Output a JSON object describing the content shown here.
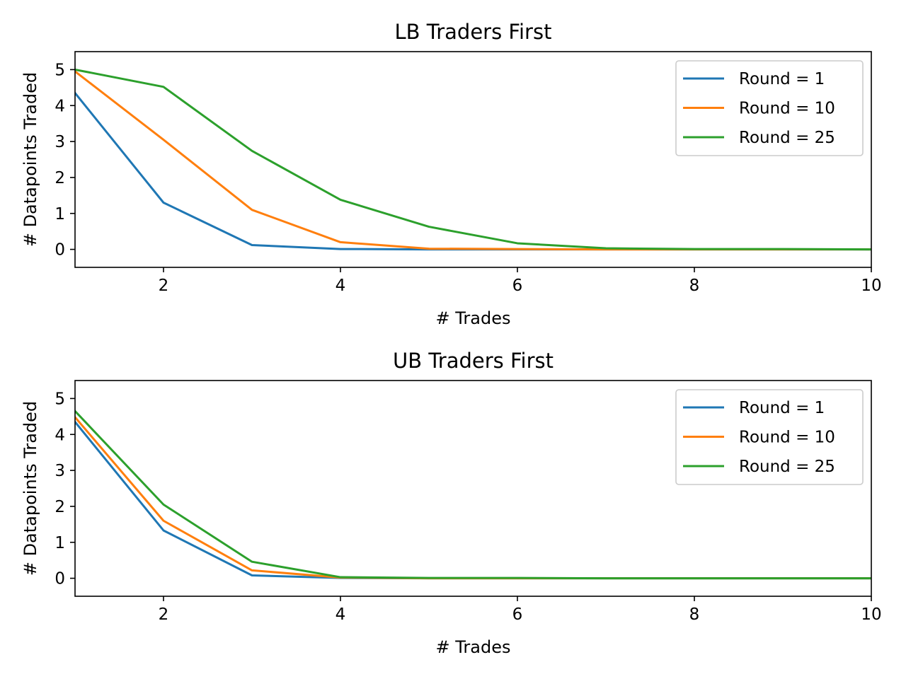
{
  "chart_data": [
    {
      "type": "line",
      "title": "LB Traders First",
      "xlabel": "# Trades",
      "ylabel": "# Datapoints Traded",
      "xlim": [
        1,
        10
      ],
      "ylim": [
        -0.5,
        5.5
      ],
      "xticks": [
        2,
        4,
        6,
        8,
        10
      ],
      "yticks": [
        0,
        1,
        2,
        3,
        4,
        5
      ],
      "grid": false,
      "legend": "top-right",
      "x": [
        1,
        2,
        3,
        4,
        5,
        6,
        7,
        8,
        9,
        10
      ],
      "series": [
        {
          "name": "Round = 1",
          "color": "#1f77b4",
          "values": [
            4.35,
            1.3,
            0.12,
            0.01,
            0.0,
            0.0,
            0.0,
            0.0,
            0.0,
            0.0
          ]
        },
        {
          "name": "Round = 10",
          "color": "#ff7f0e",
          "values": [
            4.95,
            3.05,
            1.1,
            0.2,
            0.02,
            0.01,
            0.0,
            0.0,
            0.0,
            0.0
          ]
        },
        {
          "name": "Round = 25",
          "color": "#2ca02c",
          "values": [
            5.0,
            4.52,
            2.74,
            1.38,
            0.63,
            0.17,
            0.03,
            0.01,
            0.01,
            0.0
          ]
        }
      ]
    },
    {
      "type": "line",
      "title": "UB Traders First",
      "xlabel": "# Trades",
      "ylabel": "# Datapoints Traded",
      "xlim": [
        1,
        10
      ],
      "ylim": [
        -0.5,
        5.5
      ],
      "xticks": [
        2,
        4,
        6,
        8,
        10
      ],
      "yticks": [
        0,
        1,
        2,
        3,
        4,
        5
      ],
      "grid": false,
      "legend": "top-right",
      "x": [
        1,
        2,
        3,
        4,
        5,
        6,
        7,
        8,
        9,
        10
      ],
      "series": [
        {
          "name": "Round = 1",
          "color": "#1f77b4",
          "values": [
            4.35,
            1.33,
            0.08,
            0.01,
            0.0,
            0.0,
            0.0,
            0.0,
            0.0,
            0.0
          ]
        },
        {
          "name": "Round = 10",
          "color": "#ff7f0e",
          "values": [
            4.48,
            1.6,
            0.22,
            0.02,
            0.0,
            0.0,
            0.0,
            0.0,
            0.0,
            0.0
          ]
        },
        {
          "name": "Round = 25",
          "color": "#2ca02c",
          "values": [
            4.65,
            2.05,
            0.46,
            0.03,
            0.01,
            0.01,
            0.0,
            0.0,
            0.0,
            0.0
          ]
        }
      ]
    }
  ]
}
